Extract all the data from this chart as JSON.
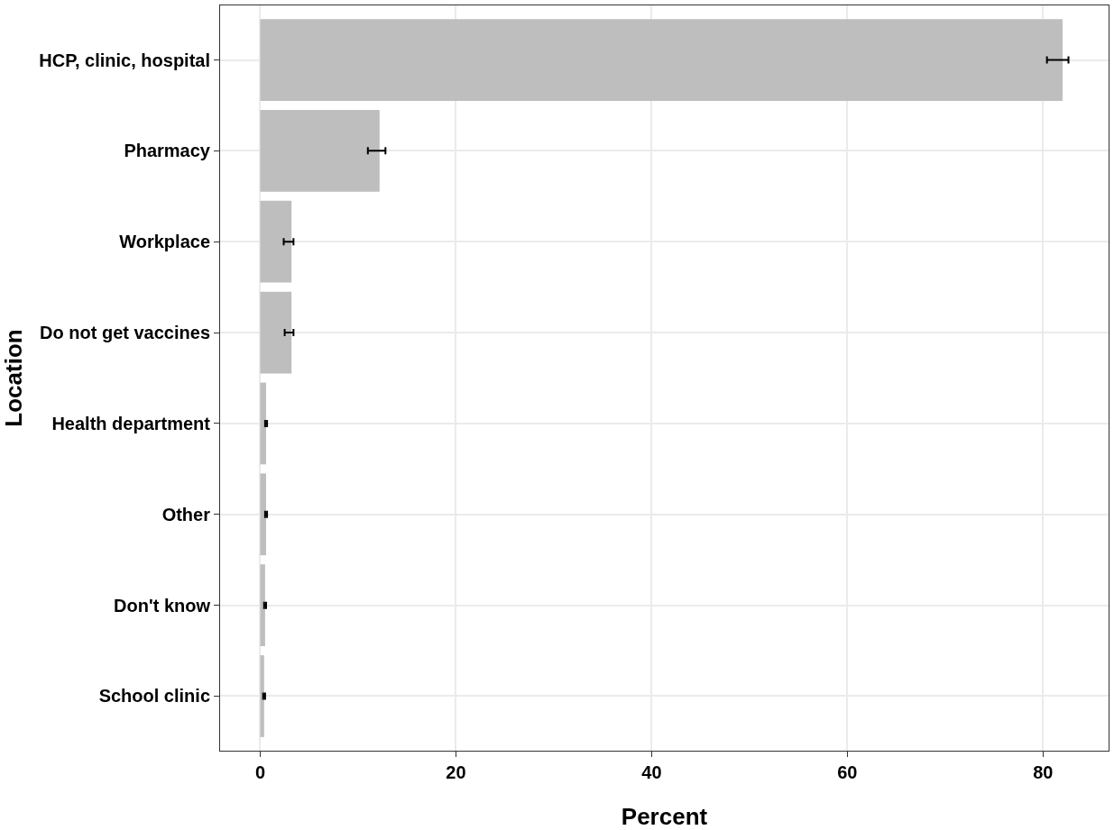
{
  "chart_data": {
    "type": "bar",
    "orientation": "horizontal",
    "xlabel": "Percent",
    "ylabel": "Location",
    "categories": [
      "HCP, clinic, hospital",
      "Pharmacy",
      "Workplace",
      "Do not get vaccines",
      "Health department",
      "Other",
      "Don't know",
      "School clinic"
    ],
    "values": [
      82.0,
      12.2,
      3.2,
      3.2,
      0.6,
      0.6,
      0.5,
      0.4
    ],
    "errors": [
      [
        80.4,
        82.6
      ],
      [
        11.0,
        12.8
      ],
      [
        2.4,
        3.4
      ],
      [
        2.5,
        3.4
      ],
      [
        0.5,
        0.7
      ],
      [
        0.5,
        0.7
      ],
      [
        0.4,
        0.6
      ],
      [
        0.3,
        0.5
      ]
    ],
    "color": "#bebebe",
    "xlim": [
      -4.1,
      86.7
    ],
    "xticks": [
      0,
      20,
      40,
      60,
      80
    ],
    "grid": true
  }
}
